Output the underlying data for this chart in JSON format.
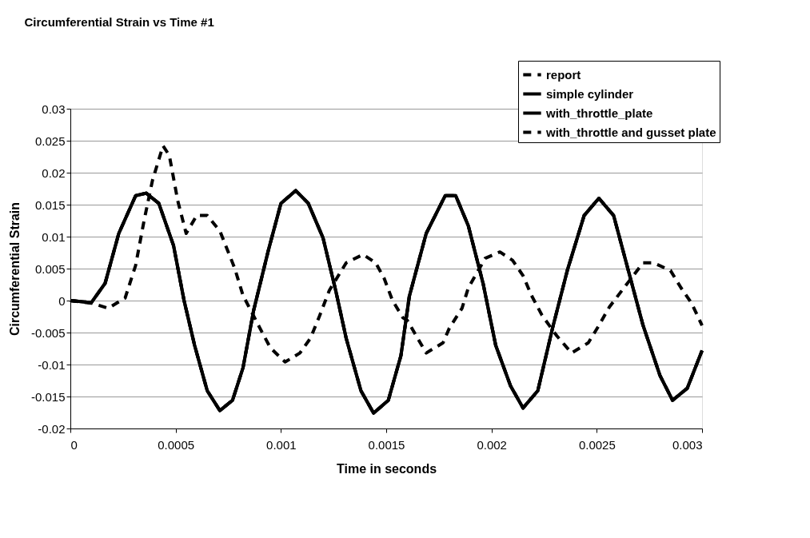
{
  "chart_data": {
    "type": "line",
    "title": "Circumferential Strain vs Time #1",
    "xlabel": "Time in seconds",
    "ylabel": "Circumferential Strain",
    "x": [
      0,
      0.0001,
      0.000165,
      0.00023,
      0.00031,
      0.00036,
      0.00042,
      0.00049,
      0.00054,
      0.00059,
      0.00065,
      0.00071,
      0.00077,
      0.00082,
      0.00087,
      0.00094,
      0.001,
      0.00107,
      0.00113,
      0.0012,
      0.00126,
      0.00131,
      0.00138,
      0.00144,
      0.00151,
      0.00157,
      0.00161,
      0.00169,
      0.00178,
      0.00183,
      0.00189,
      0.00196,
      0.00202,
      0.00209,
      0.00215,
      0.00222,
      0.00229,
      0.00236,
      0.00244,
      0.00251,
      0.00258,
      0.00265,
      0.00272,
      0.0028,
      0.00286,
      0.00293,
      0.003
    ],
    "series": [
      {
        "name": "report",
        "color": "#000000",
        "line_style": "dashed",
        "values": [
          0,
          -0.0003,
          0.0027,
          0.0105,
          0.0164,
          0.0168,
          0.0152,
          0.0086,
          0,
          -0.007,
          -0.0141,
          -0.0172,
          -0.0156,
          -0.0105,
          -0.0016,
          0.0078,
          0.0152,
          0.0172,
          0.0152,
          0.0098,
          0.0016,
          -0.0059,
          -0.0141,
          -0.0176,
          -0.0156,
          -0.0086,
          0.0007,
          0.0105,
          0.0164,
          0.0164,
          0.0117,
          0.0027,
          -0.007,
          -0.0133,
          -0.0168,
          -0.0141,
          -0.0043,
          0.0047,
          0.0133,
          0.016,
          0.0133,
          0.0047,
          -0.0039,
          -0.0117,
          -0.0156,
          -0.0137,
          -0.0078
        ]
      },
      {
        "name": "simple cylinder",
        "color": "#000000",
        "line_style": "solid",
        "values": [
          0,
          -0.0003,
          0.0027,
          0.0105,
          0.0164,
          0.0168,
          0.0152,
          0.0086,
          0,
          -0.007,
          -0.0141,
          -0.0172,
          -0.0156,
          -0.0105,
          -0.0016,
          0.0078,
          0.0152,
          0.0172,
          0.0152,
          0.0098,
          0.0016,
          -0.0059,
          -0.0141,
          -0.0176,
          -0.0156,
          -0.0086,
          0.0007,
          0.0105,
          0.0164,
          0.0164,
          0.0117,
          0.0027,
          -0.007,
          -0.0133,
          -0.0168,
          -0.0141,
          -0.0043,
          0.0047,
          0.0133,
          0.016,
          0.0133,
          0.0047,
          -0.0039,
          -0.0117,
          -0.0156,
          -0.0137,
          -0.0078
        ]
      },
      {
        "name": "with_throttle_plate",
        "color": "#000000",
        "line_style": "solid",
        "values": [
          0,
          -0.0003,
          0.0027,
          0.0105,
          0.0164,
          0.0168,
          0.0152,
          0.0086,
          0,
          -0.007,
          -0.0141,
          -0.0172,
          -0.0156,
          -0.0105,
          -0.0016,
          0.0078,
          0.0152,
          0.0172,
          0.0152,
          0.0098,
          0.0016,
          -0.0059,
          -0.0141,
          -0.0176,
          -0.0156,
          -0.0086,
          0.0007,
          0.0105,
          0.0164,
          0.0164,
          0.0117,
          0.0027,
          -0.007,
          -0.0133,
          -0.0168,
          -0.0141,
          -0.0043,
          0.0047,
          0.0133,
          0.016,
          0.0133,
          0.0047,
          -0.0039,
          -0.0117,
          -0.0156,
          -0.0137,
          -0.0078
        ]
      },
      {
        "name": "with_throttle and gusset plate",
        "color": "#000000",
        "line_style": "dashed",
        "x": [
          0,
          0.0001,
          0.00018,
          0.00026,
          0.00031,
          0.00035,
          0.00039,
          0.00044,
          0.00047,
          0.00051,
          0.00055,
          0.0006,
          0.00065,
          0.00071,
          0.00078,
          0.00082,
          0.0009,
          0.00095,
          0.00102,
          0.00109,
          0.00114,
          0.00118,
          0.00123,
          0.00131,
          0.00139,
          0.00145,
          0.00149,
          0.00153,
          0.00158,
          0.0016,
          0.00169,
          0.00177,
          0.0018,
          0.00186,
          0.00189,
          0.00197,
          0.00204,
          0.0021,
          0.00215,
          0.00219,
          0.00224,
          0.00231,
          0.00238,
          0.00246,
          0.00251,
          0.00256,
          0.00262,
          0.00272,
          0.00277,
          0.00285,
          0.0029,
          0.00295,
          0.003
        ],
        "values": [
          0,
          -0.0004,
          -0.0012,
          0.0004,
          0.0055,
          0.0125,
          0.0188,
          0.0242,
          0.0227,
          0.0156,
          0.0105,
          0.0133,
          0.0133,
          0.0109,
          0.0051,
          0.0008,
          -0.0043,
          -0.0074,
          -0.0096,
          -0.0082,
          -0.0059,
          -0.0027,
          0.0016,
          0.0059,
          0.0072,
          0.0059,
          0.0035,
          0,
          -0.0027,
          -0.0031,
          -0.0082,
          -0.0066,
          -0.0043,
          -0.0012,
          0.002,
          0.0066,
          0.0076,
          0.0063,
          0.0039,
          0.0008,
          -0.0023,
          -0.0055,
          -0.0082,
          -0.0066,
          -0.0039,
          -0.001,
          0.0016,
          0.0059,
          0.0059,
          0.0047,
          0.002,
          -0.0004,
          -0.0039
        ]
      }
    ],
    "xlim": [
      0,
      0.003
    ],
    "xticks": [
      0,
      0.0005,
      0.001,
      0.0015,
      0.002,
      0.0025,
      0.003
    ],
    "ylim": [
      -0.02,
      0.03
    ],
    "yticks": [
      -0.02,
      -0.015,
      -0.01,
      -0.005,
      0,
      0.005,
      0.01,
      0.015,
      0.02,
      0.025,
      0.03
    ],
    "grid": "y",
    "legend": "top right",
    "marker": "none"
  }
}
